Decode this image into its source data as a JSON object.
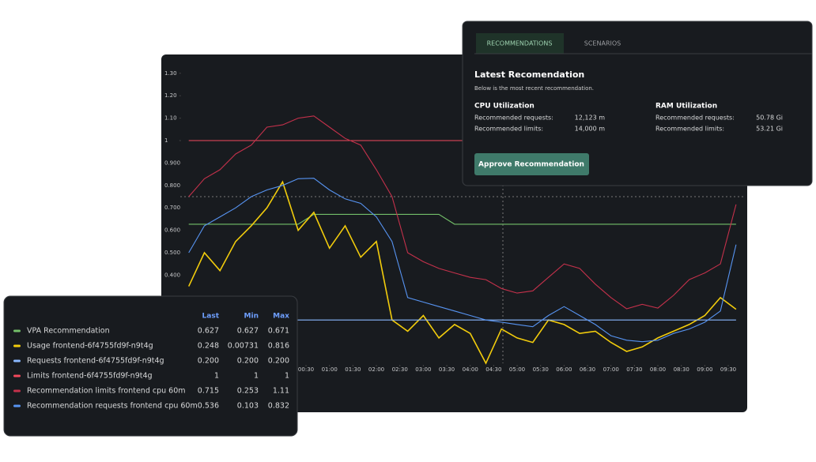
{
  "chart_data": {
    "type": "line",
    "x": [
      -120,
      -100,
      -80,
      -60,
      -40,
      -20,
      0,
      20,
      40,
      60,
      80,
      100,
      120,
      140,
      160,
      180,
      200,
      220,
      240,
      260,
      280,
      300,
      320,
      340,
      360,
      380,
      400,
      420,
      440,
      460,
      480,
      500,
      520,
      540,
      560,
      580
    ],
    "xlim": [
      -130,
      590
    ],
    "xticks": [
      {
        "value": 30,
        "label": "00:30"
      },
      {
        "value": 60,
        "label": "01:00"
      },
      {
        "value": 90,
        "label": "01:30"
      },
      {
        "value": 120,
        "label": "02:00"
      },
      {
        "value": 150,
        "label": "02:30"
      },
      {
        "value": 180,
        "label": "03:00"
      },
      {
        "value": 210,
        "label": "03:30"
      },
      {
        "value": 240,
        "label": "04:00"
      },
      {
        "value": 270,
        "label": "04:30"
      },
      {
        "value": 300,
        "label": "05:00"
      },
      {
        "value": 330,
        "label": "05:30"
      },
      {
        "value": 360,
        "label": "06:00"
      },
      {
        "value": 390,
        "label": "06:30"
      },
      {
        "value": 420,
        "label": "07:00"
      },
      {
        "value": 450,
        "label": "07:30"
      },
      {
        "value": 480,
        "label": "08:00"
      },
      {
        "value": 510,
        "label": "08:30"
      },
      {
        "value": 540,
        "label": "09:00"
      },
      {
        "value": 570,
        "label": "09:30"
      }
    ],
    "ylim": [
      0,
      1.35
    ],
    "yticks": [
      {
        "value": 0.4,
        "label": "0.400"
      },
      {
        "value": 0.5,
        "label": "0.500"
      },
      {
        "value": 0.6,
        "label": "0.600"
      },
      {
        "value": 0.7,
        "label": "0.700"
      },
      {
        "value": 0.8,
        "label": "0.800"
      },
      {
        "value": 0.9,
        "label": "0.900"
      },
      1,
      {
        "value": 1.1,
        "label": "1.10"
      },
      {
        "value": 1.2,
        "label": "1.20"
      },
      {
        "value": 1.3,
        "label": "1.30"
      }
    ],
    "grid": false,
    "legend_columns": [
      "Last",
      "Min",
      "Max"
    ],
    "series": [
      {
        "name": "VPA Recommendation",
        "color": "#73bf69",
        "stats": [
          "0.627",
          "0.627",
          "0.671"
        ],
        "values": [
          0.627,
          0.627,
          0.627,
          0.627,
          0.627,
          0.627,
          0.627,
          0.627,
          0.671,
          0.671,
          0.671,
          0.671,
          0.671,
          0.671,
          0.671,
          0.671,
          0.671,
          0.627,
          0.627,
          0.627,
          0.627,
          0.627,
          0.627,
          0.627,
          0.627,
          0.627,
          0.627,
          0.627,
          0.627,
          0.627,
          0.627,
          0.627,
          0.627,
          0.627,
          0.627,
          0.627
        ]
      },
      {
        "name": "Usage frontend-6f4755fd9f-n9t4g",
        "color": "#f2cc0c",
        "stats": [
          "0.248",
          "0.00731",
          "0.816"
        ],
        "values": [
          0.35,
          0.5,
          0.42,
          0.55,
          0.62,
          0.7,
          0.816,
          0.6,
          0.68,
          0.52,
          0.62,
          0.48,
          0.55,
          0.2,
          0.15,
          0.22,
          0.12,
          0.18,
          0.14,
          0.00731,
          0.16,
          0.12,
          0.1,
          0.2,
          0.18,
          0.14,
          0.15,
          0.1,
          0.06,
          0.08,
          0.12,
          0.15,
          0.18,
          0.22,
          0.3,
          0.248
        ]
      },
      {
        "name": "Requests frontend-6f4755fd9f-n9t4g",
        "color": "#8ab8ff",
        "stats": [
          "0.200",
          "0.200",
          "0.200"
        ],
        "values": [
          0.2,
          0.2,
          0.2,
          0.2,
          0.2,
          0.2,
          0.2,
          0.2,
          0.2,
          0.2,
          0.2,
          0.2,
          0.2,
          0.2,
          0.2,
          0.2,
          0.2,
          0.2,
          0.2,
          0.2,
          0.2,
          0.2,
          0.2,
          0.2,
          0.2,
          0.2,
          0.2,
          0.2,
          0.2,
          0.2,
          0.2,
          0.2,
          0.2,
          0.2,
          0.2,
          0.2
        ]
      },
      {
        "name": "Limits frontend-6f4755fd9f-n9t4g",
        "color": "#f2495c",
        "stats": [
          "1",
          "1",
          "1"
        ],
        "values": [
          1,
          1,
          1,
          1,
          1,
          1,
          1,
          1,
          1,
          1,
          1,
          1,
          1,
          1,
          1,
          1,
          1,
          1,
          1,
          1,
          1,
          1,
          1,
          1,
          1,
          1,
          1,
          1,
          1,
          1,
          1,
          1,
          1,
          1,
          1,
          1
        ]
      },
      {
        "name": "Recommendation limits frontend cpu 60m",
        "color": "#c4314b",
        "stats": [
          "0.715",
          "0.253",
          "1.11"
        ],
        "values": [
          0.75,
          0.83,
          0.87,
          0.94,
          0.98,
          1.06,
          1.07,
          1.1,
          1.11,
          1.06,
          1.01,
          0.98,
          0.87,
          0.75,
          0.5,
          0.46,
          0.43,
          0.41,
          0.39,
          0.38,
          0.34,
          0.32,
          0.33,
          0.39,
          0.45,
          0.43,
          0.36,
          0.3,
          0.25,
          0.27,
          0.253,
          0.31,
          0.38,
          0.41,
          0.45,
          0.715
        ]
      },
      {
        "name": "Recommendation requests frontend cpu 60m",
        "color": "#5794f2",
        "stats": [
          "0.536",
          "0.103",
          "0.832"
        ],
        "values": [
          0.5,
          0.62,
          0.66,
          0.7,
          0.75,
          0.78,
          0.8,
          0.83,
          0.832,
          0.78,
          0.74,
          0.72,
          0.66,
          0.55,
          0.3,
          0.28,
          0.26,
          0.24,
          0.22,
          0.2,
          0.19,
          0.18,
          0.17,
          0.22,
          0.26,
          0.22,
          0.18,
          0.13,
          0.11,
          0.103,
          0.11,
          0.14,
          0.16,
          0.19,
          0.24,
          0.536
        ]
      }
    ]
  },
  "recommendation_panel": {
    "tabs": [
      "RECOMMENDATIONS",
      "SCENARIOS"
    ],
    "title": "Latest Recomendation",
    "subtitle": "Below is the most recent recommendation.",
    "cpu": {
      "heading": "CPU Utilization",
      "rows": [
        [
          "Recommended requests:",
          "12,123 m"
        ],
        [
          "Recommended limits:",
          "14,000 m"
        ]
      ]
    },
    "ram": {
      "heading": "RAM Utilization",
      "rows": [
        [
          "Recommended requests:",
          "50.78 Gi"
        ],
        [
          "Recommended limits:",
          "53.21 Gi"
        ]
      ]
    },
    "button": "Approve Recommendation"
  }
}
